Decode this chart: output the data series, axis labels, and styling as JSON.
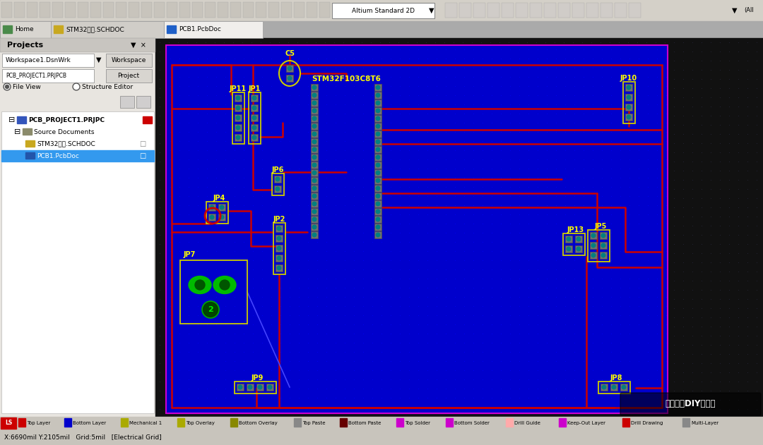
{
  "fig_width": 10.8,
  "fig_height": 6.31,
  "bg_color": "#111111",
  "toolbar_bg": "#d4d0c8",
  "sidebar_bg": "#e8e5e0",
  "pcb_bg": "#0000cc",
  "pcb_border_color": "#cc00cc",
  "pad_fill": "#808080",
  "pad_dot": "#008888",
  "trace_color": "#cc0000",
  "label_color": "#ffff00",
  "connector_outline": "#cccc00",
  "altium_text": "Altium Standard 2D",
  "tab_labels": [
    "Home",
    "STM32项目.SCHDOC",
    "PCB1.PcbDoc"
  ],
  "project_panel_title": "Projects",
  "workspace_text": "Workspace1.DsnWrk",
  "workspace_btn": "Workspace",
  "project_text": "PCB_PROJECT1.PRJPCB",
  "project_btn": "Project",
  "file_view": "File View",
  "structure_editor": "Structure Editor",
  "tree_root": "PCB_PROJECT1.PRJPC",
  "tree_source": "Source Documents",
  "tree_file1": "STM32项目.SCHDOC",
  "tree_file2": "PCB1.PcbDoc",
  "layer_tabs": [
    "Top Layer",
    "Bottom Layer",
    "Mechanical 1",
    "Top Overlay",
    "Bottom Overlay",
    "Top Paste",
    "Bottom Paste",
    "Top Solder",
    "Bottom Solder",
    "Drill Guide",
    "Keep-Out Layer",
    "Drill Drawing",
    "Multi-Layer"
  ],
  "layer_colors": [
    "#cc0000",
    "#0000cc",
    "#aaaa00",
    "#aaaa00",
    "#888800",
    "#888888",
    "#660000",
    "#cc00cc",
    "#cc00cc",
    "#ffaaaa",
    "#cc00cc",
    "#cc0000",
    "#888888"
  ],
  "status_text": "X:6690mil Y:2105mil   Grid:5mil   [Electrical Grid]",
  "watermark_text": "电子工程DIY工作室"
}
